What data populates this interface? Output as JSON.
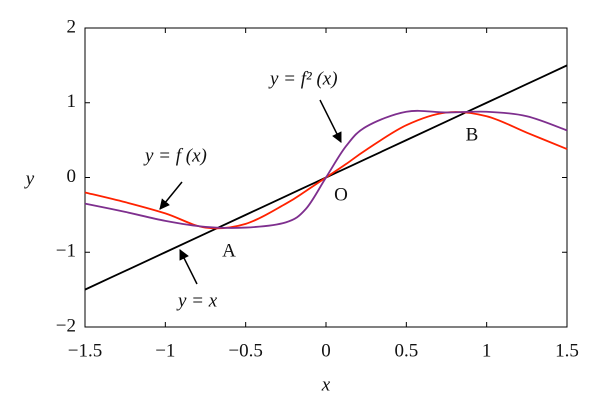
{
  "chart_data": {
    "type": "line",
    "x_label": "x",
    "y_label": "y",
    "x": [
      -1.5,
      -1.25,
      -1,
      -0.75,
      -0.5,
      -0.25,
      -0.125,
      0,
      0.125,
      0.25,
      0.5,
      0.75,
      1,
      1.25,
      1.5
    ],
    "series": [
      {
        "name": "y = x",
        "color": "#000000",
        "values": [
          -1.5,
          -1.25,
          -1,
          -0.75,
          -0.5,
          -0.25,
          -0.125,
          0,
          0.125,
          0.25,
          0.5,
          0.75,
          1,
          1.25,
          1.5
        ]
      },
      {
        "name": "y = f (x)",
        "color": "#ff2200",
        "values": [
          -0.2,
          -0.33,
          -0.48,
          -0.67,
          -0.62,
          -0.35,
          -0.18,
          0,
          0.18,
          0.37,
          0.7,
          0.87,
          0.82,
          0.6,
          0.38
        ]
      },
      {
        "name": "y = f² (x)",
        "color": "#7e2f8e",
        "values": [
          -0.35,
          -0.46,
          -0.58,
          -0.66,
          -0.67,
          -0.6,
          -0.42,
          0,
          0.42,
          0.68,
          0.88,
          0.87,
          0.88,
          0.82,
          0.63
        ]
      }
    ],
    "annotations": [
      "A",
      "O",
      "B"
    ],
    "xlim": [
      -1.5,
      1.5
    ],
    "ylim": [
      -2,
      2
    ],
    "xticks": [
      {
        "value": -1.5,
        "label": "−1.5"
      },
      {
        "value": -1,
        "label": "−1"
      },
      {
        "value": -0.5,
        "label": "−0.5"
      },
      0,
      0.5,
      1,
      1.5
    ],
    "yticks": [
      {
        "value": -2,
        "label": "−2"
      },
      {
        "value": -1,
        "label": "−1"
      },
      0,
      1,
      2
    ],
    "grid": false
  }
}
